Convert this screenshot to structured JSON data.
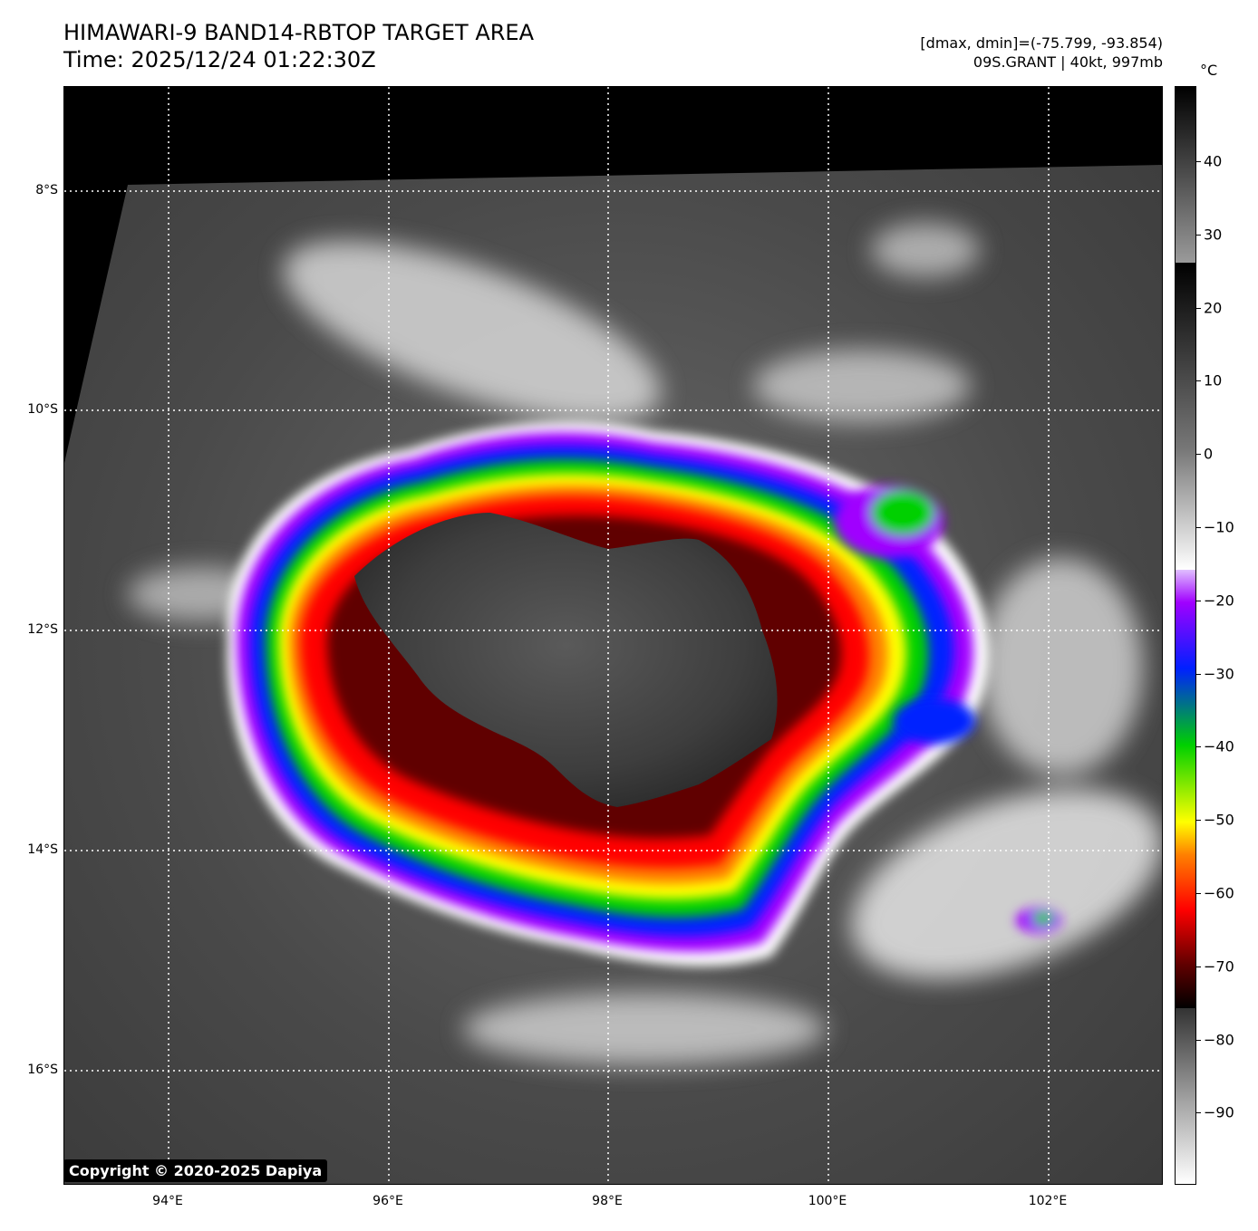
{
  "header": {
    "title": "HIMAWARI-9 BAND14-RBTOP TARGET AREA",
    "time": "Time: 2025/12/24 01:22:30Z",
    "range": "[dmax, dmin]=(-75.799, -93.854)",
    "storm": "09S.GRANT | 40kt, 997mb"
  },
  "map": {
    "lat_labels": [
      "8°S",
      "10°S",
      "12°S",
      "14°S",
      "16°S"
    ],
    "lon_labels": [
      "94°E",
      "96°E",
      "98°E",
      "100°E",
      "102°E"
    ],
    "gridlines": "dotted white"
  },
  "colorbar": {
    "unit": "°C",
    "labels": [
      "40",
      "30",
      "20",
      "10",
      "0",
      "−10",
      "−20",
      "−30",
      "−40",
      "−50",
      "−60",
      "−70",
      "−80",
      "−90"
    ],
    "colors": {
      "white": "#ffffff",
      "violet": "#a000ff",
      "blue": "#0020ff",
      "green": "#00d000",
      "yellow": "#ffff00",
      "orange": "#ff8000",
      "red": "#ff0000",
      "dark_red": "#600000",
      "black": "#000000"
    }
  },
  "copyright": "Copyright © 2020-2025 Dapiya"
}
